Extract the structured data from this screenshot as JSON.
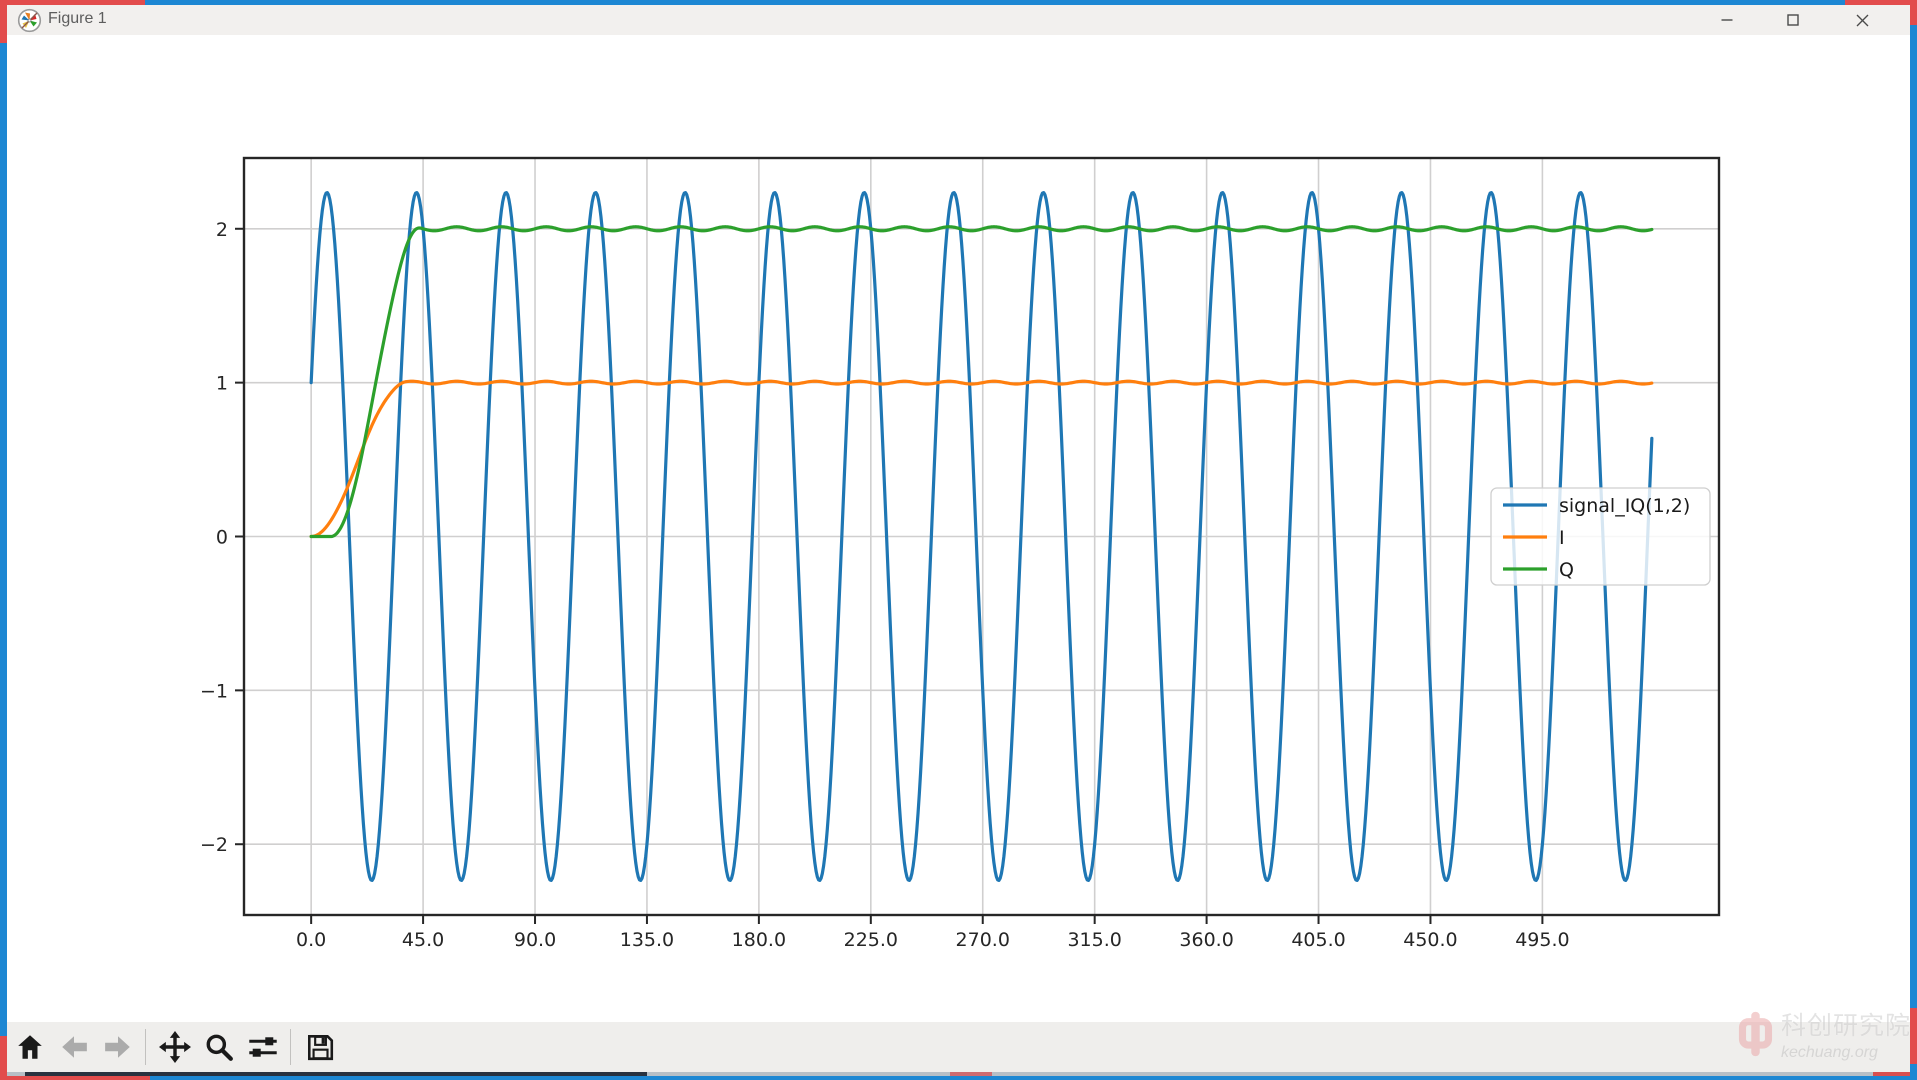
{
  "window": {
    "title": "Figure 1",
    "controls": [
      {
        "name": "minimize"
      },
      {
        "name": "maximize"
      },
      {
        "name": "close"
      }
    ]
  },
  "toolbar": {
    "buttons": [
      {
        "name": "home",
        "enabled": true
      },
      {
        "name": "back",
        "enabled": false
      },
      {
        "name": "forward",
        "enabled": false
      },
      {
        "name": "pan",
        "enabled": true
      },
      {
        "name": "zoom-to-rect",
        "enabled": true
      },
      {
        "name": "configure-subplots",
        "enabled": true
      },
      {
        "name": "save",
        "enabled": true
      }
    ]
  },
  "watermark": {
    "line1": "科创研究院",
    "line2": "kechuang.org",
    "logo_color": "#eba9a9"
  },
  "colors": {
    "window_border": "#1d87d3",
    "corner_accent": "#e24c4c",
    "titlebar_bg": "#f2f0ee",
    "toolbar_bg": "#efeeec",
    "icon_enabled": "#1a1a1a",
    "icon_disabled": "#aaaaaa",
    "grid": "#d0cfcf",
    "spine": "#262626",
    "tick_label": "#262626"
  },
  "chart_data": {
    "type": "line",
    "title": "",
    "xlabel": "",
    "ylabel": "",
    "grid": true,
    "xlim": [
      -27,
      566
    ],
    "ylim": [
      -2.46,
      2.46
    ],
    "x_range": [
      0,
      539
    ],
    "sample_step": 0.5,
    "x_tick_values": [
      0,
      45,
      90,
      135,
      180,
      225,
      270,
      315,
      360,
      405,
      450,
      495
    ],
    "x_ticks": [
      "0.0",
      "45.0",
      "90.0",
      "135.0",
      "180.0",
      "225.0",
      "270.0",
      "315.0",
      "360.0",
      "405.0",
      "450.0",
      "495.0"
    ],
    "y_tick_values": [
      -2,
      -1,
      0,
      1,
      2
    ],
    "y_ticks": [
      "−2",
      "−1",
      "0",
      "1",
      "2"
    ],
    "legend": {
      "position": "center right"
    },
    "series": [
      {
        "name": "signal_IQ(1,2)",
        "color": "#1f77b4",
        "kind": "carrier",
        "formula": "I0*cos(2*pi*x/T) + Q0*sin(2*pi*x/T)",
        "params": {
          "I0": 1,
          "Q0": 2,
          "T": 36
        },
        "amplitude": 2.236,
        "value_at_x0": 1.0,
        "first_peak_x": 6.3
      },
      {
        "name": "I",
        "color": "#ff7f0e",
        "kind": "step-response",
        "final_value": 1,
        "rise": {
          "type": "raised-cosine",
          "delay": 0,
          "duration": 38
        },
        "ripple": {
          "amplitude": 0.009,
          "period": 18
        }
      },
      {
        "name": "Q",
        "color": "#2ca02c",
        "kind": "step-response",
        "final_value": 2,
        "rise": {
          "type": "raised-cosine",
          "delay": 8,
          "duration": 36
        },
        "ripple": {
          "amplitude": 0.013,
          "period": 18
        }
      }
    ]
  }
}
